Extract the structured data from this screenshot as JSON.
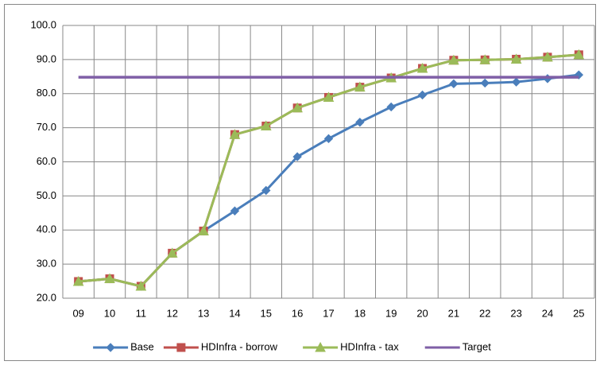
{
  "chart_data": {
    "type": "line",
    "categories": [
      "09",
      "10",
      "11",
      "12",
      "13",
      "14",
      "15",
      "16",
      "17",
      "18",
      "19",
      "20",
      "21",
      "22",
      "23",
      "24",
      "25"
    ],
    "series": [
      {
        "name": "Base",
        "color": "#4a7ebb",
        "marker": "diamond",
        "values": [
          24.9,
          25.7,
          23.5,
          33.2,
          39.7,
          45.6,
          51.6,
          61.5,
          66.8,
          71.6,
          76.1,
          79.6,
          82.9,
          83.1,
          83.4,
          84.4,
          85.5
        ]
      },
      {
        "name": "HDInfra - borrow",
        "color": "#c0504d",
        "marker": "square",
        "values": [
          24.9,
          25.7,
          23.5,
          33.2,
          39.7,
          68.0,
          70.5,
          75.8,
          78.9,
          81.9,
          84.6,
          87.4,
          89.8,
          89.9,
          90.1,
          90.7,
          91.4
        ]
      },
      {
        "name": "HDInfra - tax",
        "color": "#9bbb59",
        "marker": "triangle",
        "values": [
          24.9,
          25.7,
          23.5,
          33.2,
          39.7,
          68.0,
          70.5,
          75.8,
          78.9,
          81.9,
          84.6,
          87.4,
          89.8,
          89.9,
          90.1,
          90.7,
          91.4
        ]
      },
      {
        "name": "Target",
        "color": "#7f5fa6",
        "marker": "none",
        "values": [
          84.8,
          84.8,
          84.8,
          84.8,
          84.8,
          84.8,
          84.8,
          84.8,
          84.8,
          84.8,
          84.8,
          84.8,
          84.8,
          84.8,
          84.8,
          84.8,
          84.8
        ]
      }
    ],
    "ylim": [
      20,
      100
    ],
    "yticks": [
      {
        "value": 20,
        "label": "20.0"
      },
      {
        "value": 30,
        "label": "30.0"
      },
      {
        "value": 40,
        "label": "40.0"
      },
      {
        "value": 50,
        "label": "50.0"
      },
      {
        "value": 60,
        "label": "60.0"
      },
      {
        "value": 70,
        "label": "70.0"
      },
      {
        "value": 80,
        "label": "80.0"
      },
      {
        "value": 90,
        "label": "90.0"
      },
      {
        "value": 100,
        "label": "100.0"
      }
    ],
    "grid": true,
    "legend": "bottom"
  }
}
